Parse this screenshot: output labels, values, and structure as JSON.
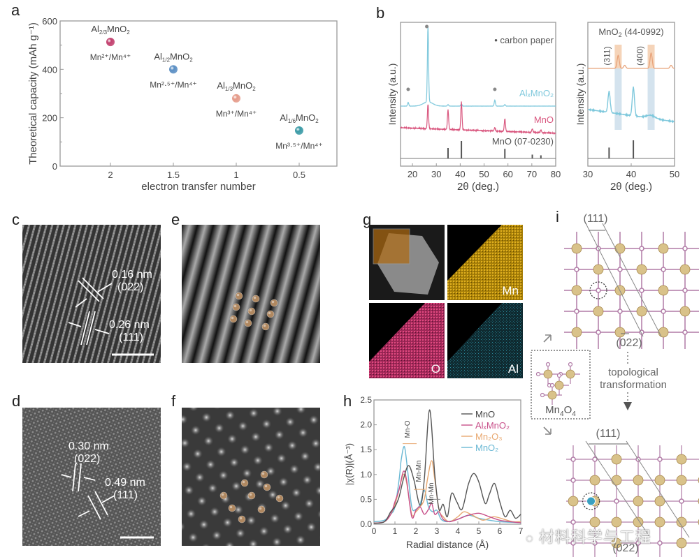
{
  "panel_labels": {
    "a": "a",
    "b": "b",
    "c": "c",
    "d": "d",
    "e": "e",
    "f": "f",
    "g": "g",
    "h": "h",
    "i": "i"
  },
  "chart_data": [
    {
      "id": "a",
      "type": "scatter",
      "title": "",
      "xlabel": "electron transfer number",
      "ylabel": "Theoretical capacity (mAh g⁻¹)",
      "xlim": [
        2.4,
        0.2
      ],
      "ylim": [
        0,
        600
      ],
      "x_ticks": [
        "2",
        "1.5",
        "1",
        "0.5"
      ],
      "x_tick_values": [
        2,
        1.5,
        1,
        0.5
      ],
      "y_ticks": [
        "0",
        "200",
        "400",
        "600"
      ],
      "y_tick_values": [
        0,
        200,
        400,
        600
      ],
      "points": [
        {
          "x": 2,
          "y": 513,
          "label": "Al",
          "sub": "2/3",
          "tail": "MnO",
          "tail_sub": "2",
          "couple": "Mn²⁺/Mn⁴⁺",
          "color": "#c2406e"
        },
        {
          "x": 1.5,
          "y": 400,
          "label": "Al",
          "sub": "1/2",
          "tail": "MnO",
          "tail_sub": "2",
          "couple": "Mn²·⁵⁺/Mn⁴⁺",
          "color": "#5b8fc4"
        },
        {
          "x": 1,
          "y": 280,
          "label": "Al",
          "sub": "1/3",
          "tail": "MnO",
          "tail_sub": "2",
          "couple": "Mn³⁺/Mn⁴⁺",
          "color": "#e59b8a"
        },
        {
          "x": 0.5,
          "y": 147,
          "label": "Al",
          "sub": "1/6",
          "tail": "MnO",
          "tail_sub": "2",
          "couple": "Mn³·⁵⁺/Mn⁴⁺",
          "color": "#3a9aa6"
        }
      ]
    },
    {
      "id": "b-left",
      "type": "line",
      "xlabel": "2θ (deg.)",
      "ylabel": "Intensity (a.u.)",
      "xlim": [
        15,
        80
      ],
      "x_ticks": [
        "20",
        "30",
        "40",
        "50",
        "60",
        "70",
        "80"
      ],
      "x_tick_values": [
        20,
        30,
        40,
        50,
        60,
        70,
        80
      ],
      "legend": "• carbon paper",
      "series": [
        {
          "name": "AlₓMnO₂",
          "color": "#7ec8dc",
          "peaks": [
            [
              18.2,
              0.05
            ],
            [
              26.5,
              1.0
            ],
            [
              34.9,
              0.02
            ],
            [
              40.5,
              0.03
            ],
            [
              54.5,
              0.08
            ],
            [
              58.7,
              0.02
            ]
          ]
        },
        {
          "name": "MnO",
          "color": "#d9577f",
          "peaks": [
            [
              26.5,
              0.35
            ],
            [
              34.9,
              0.28
            ],
            [
              40.5,
              0.4
            ],
            [
              54.5,
              0.05
            ],
            [
              58.7,
              0.18
            ],
            [
              70.2,
              0.05
            ],
            [
              73.8,
              0.04
            ]
          ]
        }
      ],
      "reference": {
        "name": "MnO (07-0230)",
        "color": "#555555",
        "peaks": [
          [
            34.9,
            0.6
          ],
          [
            40.5,
            1.0
          ],
          [
            58.7,
            0.55
          ],
          [
            70.2,
            0.22
          ],
          [
            73.8,
            0.18
          ]
        ]
      },
      "carbon_markers": [
        18.2,
        26.0,
        54.5
      ]
    },
    {
      "id": "b-right",
      "type": "line",
      "xlabel": "2θ (deg.)",
      "ylabel": "Intensity (a.u.)",
      "xlim": [
        30,
        50
      ],
      "x_ticks": [
        "30",
        "40",
        "50"
      ],
      "x_tick_values": [
        30,
        40,
        50
      ],
      "reference_top": {
        "name": "MnO",
        "sub": "2",
        "code": "(44-0992)",
        "color": "#e8a37a",
        "peaks": [
          [
            37.0,
            0.85
          ],
          [
            38.5,
            0.2
          ],
          [
            44.6,
            1.0
          ],
          [
            49.2,
            0.2
          ]
        ]
      },
      "highlight_bands": [
        {
          "label": "(311)",
          "center": 37.0
        },
        {
          "label": "(400)",
          "center": 44.6
        }
      ],
      "sample": {
        "color": "#7ec8dc",
        "peaks": [
          [
            34.9,
            0.55
          ],
          [
            40.5,
            0.75
          ]
        ]
      },
      "reference_bottom": {
        "color": "#555555",
        "peaks": [
          [
            34.9,
            0.6
          ],
          [
            40.5,
            1.0
          ]
        ]
      }
    },
    {
      "id": "h",
      "type": "line",
      "xlabel": "Radial distance (Å)",
      "ylabel": "|χ(R)|(Å⁻³)",
      "xlim": [
        0,
        7
      ],
      "ylim": [
        0,
        2.5
      ],
      "x_ticks": [
        "0",
        "1",
        "2",
        "3",
        "4",
        "5",
        "6",
        "7"
      ],
      "x_tick_values": [
        0,
        1,
        2,
        3,
        4,
        5,
        6,
        7
      ],
      "y_ticks": [
        "0.0",
        "0.5",
        "1.0",
        "1.5",
        "2.0",
        "2.5"
      ],
      "y_tick_values": [
        0,
        0.5,
        1.0,
        1.5,
        2.0,
        2.5
      ],
      "legend_position": "top-right",
      "annotations": [
        "Mn-O",
        "Mn-Mn",
        "Mn-Mn"
      ],
      "series": [
        {
          "name": "MnO",
          "color": "#555555",
          "x": [
            0,
            0.5,
            0.8,
            1.0,
            1.2,
            1.4,
            1.65,
            1.9,
            2.2,
            2.4,
            2.65,
            2.9,
            3.1,
            3.3,
            3.5,
            3.7,
            3.95,
            4.2,
            4.5,
            4.75,
            5.0,
            5.3,
            5.5,
            5.75,
            6.0,
            6.25,
            6.5,
            6.75,
            7.0
          ],
          "y": [
            0.02,
            0.05,
            0.25,
            0.35,
            0.55,
            0.9,
            1.18,
            0.9,
            0.38,
            0.9,
            2.3,
            1.0,
            0.3,
            0.4,
            0.15,
            0.62,
            0.45,
            0.3,
            0.8,
            1.02,
            0.85,
            0.42,
            0.6,
            0.82,
            0.45,
            0.15,
            0.28,
            0.12,
            0.2
          ]
        },
        {
          "name": "AlₓMnO₂",
          "color": "#c8508a",
          "x": [
            0,
            0.5,
            0.8,
            1.0,
            1.2,
            1.4,
            1.55,
            1.8,
            2.0,
            2.2,
            2.4,
            2.6,
            2.75,
            2.9,
            3.1,
            3.3,
            3.6,
            4.0,
            4.5,
            5.0,
            5.5,
            6.0,
            6.5,
            7.0
          ],
          "y": [
            0.02,
            0.05,
            0.2,
            0.45,
            0.7,
            1.06,
            0.9,
            0.15,
            0.28,
            0.35,
            0.2,
            0.3,
            0.42,
            0.2,
            0.25,
            0.1,
            0.05,
            0.1,
            0.18,
            0.22,
            0.15,
            0.08,
            0.05,
            0.03
          ]
        },
        {
          "name": "Mn₂O₃",
          "color": "#e8a870",
          "x": [
            0,
            0.5,
            0.8,
            1.0,
            1.2,
            1.4,
            1.55,
            1.8,
            2.0,
            2.2,
            2.4,
            2.55,
            2.75,
            2.9,
            3.1,
            3.3,
            3.6,
            4.0,
            4.3,
            4.7,
            5.2,
            5.7,
            6.2,
            6.6,
            7.0
          ],
          "y": [
            0.02,
            0.05,
            0.2,
            0.4,
            0.7,
            1.0,
            0.85,
            0.2,
            0.25,
            0.35,
            0.5,
            0.9,
            1.28,
            0.9,
            0.3,
            0.15,
            0.05,
            0.15,
            0.25,
            0.18,
            0.08,
            0.15,
            0.1,
            0.05,
            0.05
          ]
        },
        {
          "name": "MnO₂",
          "color": "#6ab8d4",
          "x": [
            0,
            0.5,
            0.8,
            1.0,
            1.2,
            1.3,
            1.45,
            1.6,
            1.8,
            2.0,
            2.2,
            2.4,
            2.6,
            2.8,
            3.0,
            3.2,
            3.5,
            4.0,
            4.5,
            5.0,
            5.5,
            6.0,
            6.5,
            7.0
          ],
          "y": [
            0.05,
            0.08,
            0.2,
            0.35,
            0.9,
            1.3,
            1.56,
            1.1,
            0.35,
            0.3,
            0.4,
            0.68,
            0.35,
            0.25,
            0.28,
            0.1,
            0.05,
            0.1,
            0.18,
            0.12,
            0.08,
            0.05,
            0.04,
            0.03
          ]
        }
      ]
    }
  ],
  "panel_c": {
    "d1": "0.16 nm",
    "p1": "(022)",
    "d2": "0.26 nm",
    "p2": "(111)"
  },
  "panel_d": {
    "d1": "0.30 nm",
    "p1": "(022)",
    "d2": "0.49 nm",
    "p2": "(111)"
  },
  "panel_g": {
    "maps": [
      "Mn",
      "O",
      "Al"
    ],
    "colors": {
      "Mn": "#d9a820",
      "O": "#c83a6a",
      "Al": "#2a8a9c"
    }
  },
  "panel_i": {
    "top_plane_a": "(111)",
    "top_plane_b": "(022)",
    "process": [
      "topological",
      "transformation"
    ],
    "cluster": "Mn",
    "cluster_sub1": "4",
    "cluster_mid": "O",
    "cluster_sub2": "4",
    "bottom_plane_a": "(111)",
    "bottom_plane_b": "(022)"
  },
  "watermark": "材料科学与工程",
  "colors": {
    "mn_atom": "#d9c28a",
    "o_atom": "#b07aa6",
    "al_atom": "#3aa0c0"
  }
}
